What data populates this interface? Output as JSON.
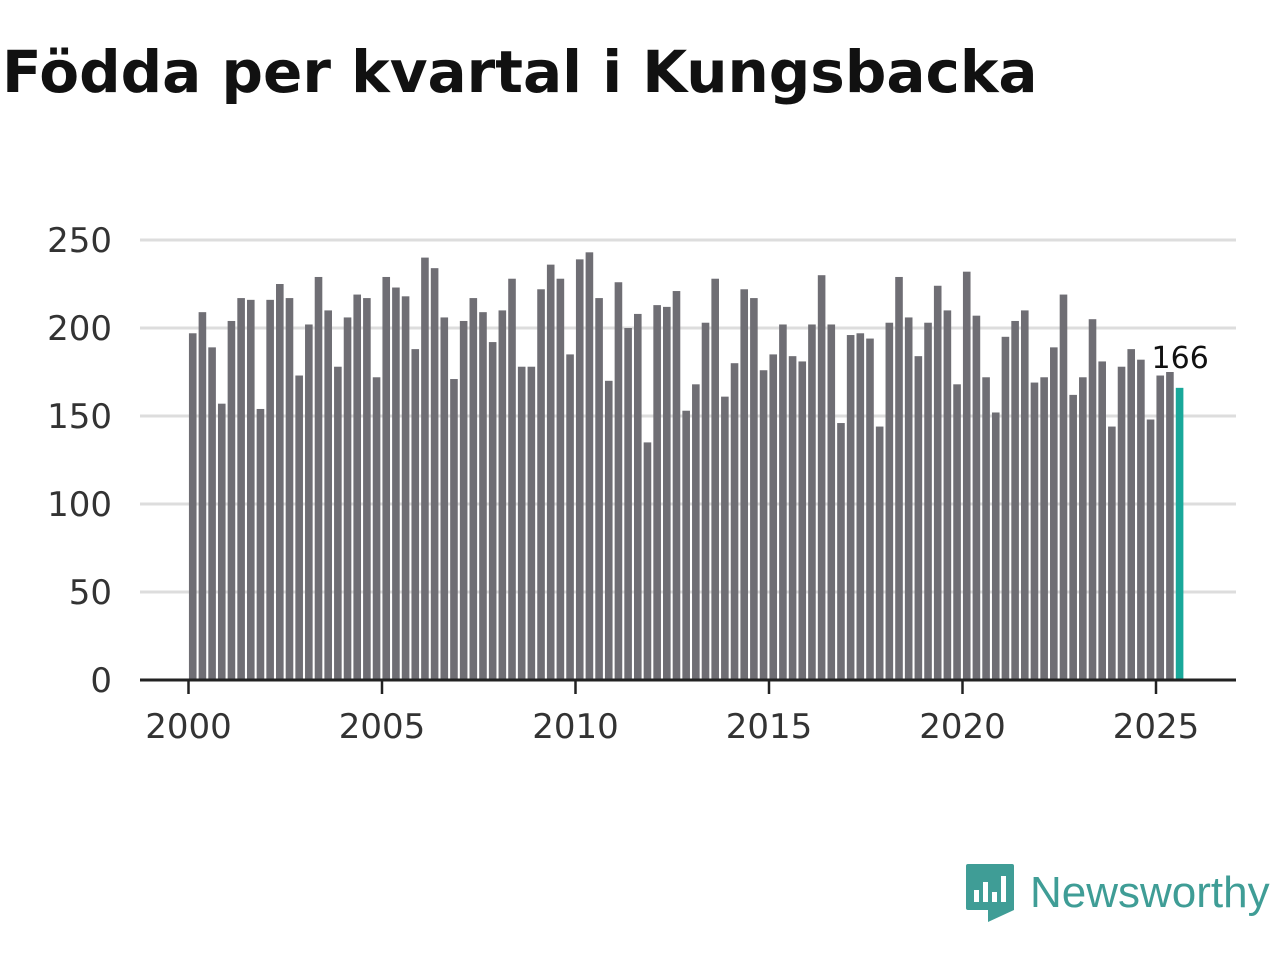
{
  "title": "Födda per kvartal i Kungsbacka",
  "brand": {
    "name": "Newsworthy",
    "icon": "newsworthy-logo-icon",
    "color": "#3f9d96"
  },
  "colors": {
    "bar": "#6f6e74",
    "highlight": "#19a89a",
    "grid": "#dddddd",
    "axis": "#222222"
  },
  "chart_data": {
    "type": "bar",
    "title": "Födda per kvartal i Kungsbacka",
    "xlabel": "",
    "ylabel": "",
    "ylim": [
      0,
      250
    ],
    "yticks": [
      0,
      50,
      100,
      150,
      200,
      250
    ],
    "xlim": [
      1999.6,
      2027.0
    ],
    "xticks": [
      "2000",
      "2005",
      "2010",
      "2015",
      "2020",
      "2025"
    ],
    "grid": true,
    "highlight_last": true,
    "last_label": "166",
    "series": [
      {
        "x_start": 2000.125,
        "x_step": 0.25,
        "values": [
          197,
          209,
          189,
          157,
          204,
          217,
          216,
          154,
          216,
          225,
          217,
          173,
          202,
          229,
          210,
          178,
          206,
          219,
          217,
          172,
          229,
          223,
          218,
          188,
          240,
          234,
          206,
          171,
          204,
          217,
          209,
          192,
          210,
          228,
          178,
          178,
          222,
          236,
          228,
          185,
          239,
          243,
          217,
          170,
          226,
          200,
          208,
          135,
          213,
          212,
          221,
          153,
          168,
          203,
          228,
          161,
          180,
          222,
          217,
          176,
          185,
          202,
          184,
          181,
          202,
          230,
          202,
          146,
          196,
          197,
          194,
          144,
          203,
          229,
          206,
          184,
          203,
          224,
          210,
          168,
          232,
          207,
          172,
          152,
          195,
          204,
          210,
          169,
          172,
          189,
          219,
          162,
          172,
          205,
          181,
          144,
          178,
          188,
          182,
          148,
          173,
          175,
          166
        ]
      }
    ]
  }
}
